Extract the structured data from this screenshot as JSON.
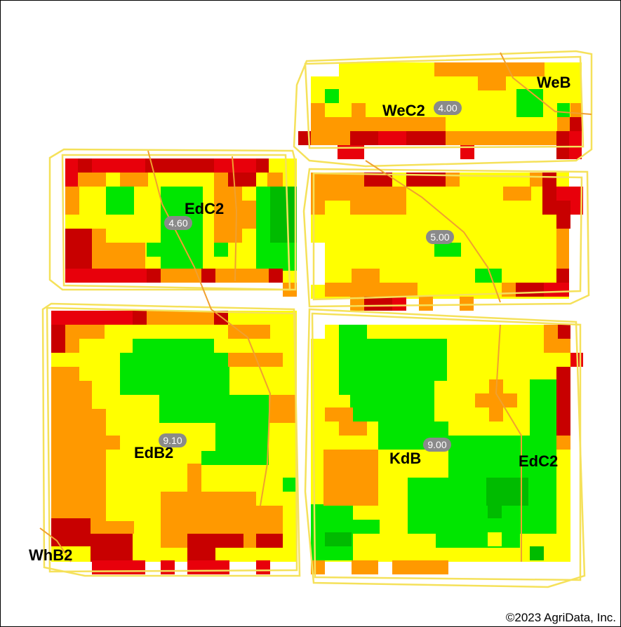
{
  "colors": {
    "red": "#e8000b",
    "dark_red": "#c80000",
    "orange": "#ff9900",
    "yellow": "#ffff00",
    "green": "#00e600",
    "dark_green": "#00bb00",
    "boundary": "#f5e15a",
    "soil_line": "#f0a030",
    "badge": "#8a8a8a"
  },
  "soil_labels": [
    {
      "id": "web",
      "text": "WeB"
    },
    {
      "id": "wec2",
      "text": "WeC2"
    },
    {
      "id": "edc2-nw",
      "text": "EdC2"
    },
    {
      "id": "edb2",
      "text": "EdB2"
    },
    {
      "id": "kdb",
      "text": "KdB"
    },
    {
      "id": "edc2-se",
      "text": "EdC2"
    },
    {
      "id": "whb2",
      "text": "WhB2"
    }
  ],
  "acre_badges": [
    {
      "id": "field-ne",
      "text": "4.00"
    },
    {
      "id": "field-nw",
      "text": "4.60"
    },
    {
      "id": "field-e",
      "text": "5.00"
    },
    {
      "id": "field-sw",
      "text": "9.10"
    },
    {
      "id": "field-se",
      "text": "9.00"
    }
  ],
  "copyright": "©2023 AgriData, Inc."
}
